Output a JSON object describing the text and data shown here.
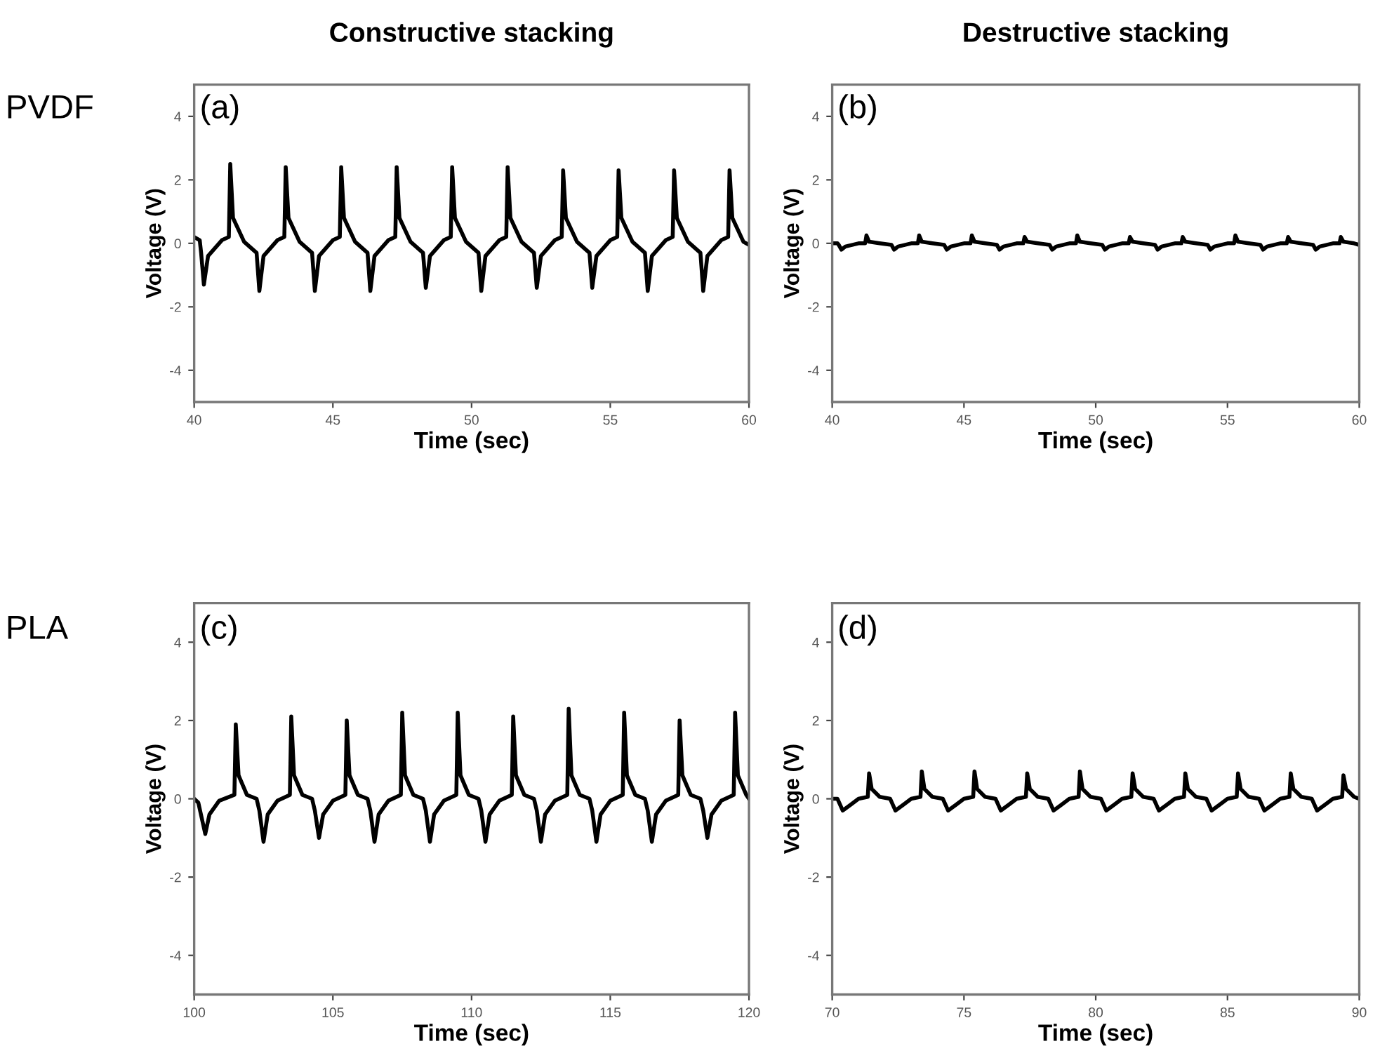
{
  "chart_data": [
    {
      "type": "line",
      "title": "Constructive stacking",
      "xlabel": "Time (sec)",
      "ylabel": "Voltage (V)",
      "annotations": [
        "(a)",
        "PVDF"
      ],
      "xlim": [
        40,
        60
      ],
      "xticks": [
        40,
        45,
        50,
        55,
        60
      ],
      "ylim": [
        -5,
        5
      ],
      "yticks": [
        -4,
        -2,
        0,
        2,
        4
      ],
      "grid": false,
      "legend": false,
      "x": [
        40.0,
        40.2,
        40.25,
        40.35,
        40.5,
        41.0,
        41.25,
        41.3,
        41.4,
        41.8,
        42.25,
        42.35,
        42.5,
        43.0,
        43.25,
        43.3,
        43.4,
        43.8,
        44.25,
        44.35,
        44.5,
        45.0,
        45.25,
        45.3,
        45.4,
        45.8,
        46.25,
        46.35,
        46.5,
        47.0,
        47.25,
        47.3,
        47.4,
        47.8,
        48.25,
        48.35,
        48.5,
        49.0,
        49.25,
        49.3,
        49.4,
        49.8,
        50.25,
        50.35,
        50.5,
        51.0,
        51.25,
        51.3,
        51.4,
        51.8,
        52.25,
        52.35,
        52.5,
        53.0,
        53.25,
        53.3,
        53.4,
        53.8,
        54.25,
        54.35,
        54.5,
        55.0,
        55.25,
        55.3,
        55.4,
        55.8,
        56.25,
        56.35,
        56.5,
        57.0,
        57.25,
        57.3,
        57.4,
        57.8,
        58.25,
        58.35,
        58.5,
        59.0,
        59.25,
        59.3,
        59.4,
        59.8,
        60.0
      ],
      "series": [
        {
          "color": "#000000",
          "values": [
            0.2,
            0.1,
            -0.3,
            -1.3,
            -0.4,
            0.1,
            0.2,
            2.5,
            0.8,
            0.05,
            -0.3,
            -1.5,
            -0.4,
            0.1,
            0.2,
            2.4,
            0.8,
            0.05,
            -0.3,
            -1.5,
            -0.4,
            0.1,
            0.2,
            2.4,
            0.8,
            0.05,
            -0.3,
            -1.5,
            -0.4,
            0.1,
            0.2,
            2.4,
            0.8,
            0.05,
            -0.3,
            -1.4,
            -0.4,
            0.1,
            0.2,
            2.4,
            0.8,
            0.05,
            -0.3,
            -1.5,
            -0.4,
            0.1,
            0.2,
            2.4,
            0.8,
            0.05,
            -0.3,
            -1.4,
            -0.4,
            0.1,
            0.2,
            2.3,
            0.8,
            0.05,
            -0.3,
            -1.4,
            -0.4,
            0.1,
            0.2,
            2.3,
            0.8,
            0.05,
            -0.3,
            -1.5,
            -0.4,
            0.1,
            0.2,
            2.3,
            0.8,
            0.05,
            -0.3,
            -1.5,
            -0.4,
            0.1,
            0.2,
            2.3,
            0.8,
            0.05,
            -0.05
          ]
        }
      ]
    },
    {
      "type": "line",
      "title": "Destructive stacking",
      "xlabel": "Time (sec)",
      "ylabel": "Voltage (V)",
      "annotations": [
        "(b)"
      ],
      "xlim": [
        40,
        60
      ],
      "xticks": [
        40,
        45,
        50,
        55,
        60
      ],
      "ylim": [
        -5,
        5
      ],
      "yticks": [
        -4,
        -2,
        0,
        2,
        4
      ],
      "grid": false,
      "legend": false,
      "x": [
        40.0,
        40.2,
        40.25,
        40.35,
        40.5,
        41.0,
        41.25,
        41.3,
        41.4,
        41.8,
        42.25,
        42.35,
        42.5,
        43.0,
        43.25,
        43.3,
        43.4,
        43.8,
        44.25,
        44.35,
        44.5,
        45.0,
        45.25,
        45.3,
        45.4,
        45.8,
        46.25,
        46.35,
        46.5,
        47.0,
        47.25,
        47.3,
        47.4,
        47.8,
        48.25,
        48.35,
        48.5,
        49.0,
        49.25,
        49.3,
        49.4,
        49.8,
        50.25,
        50.35,
        50.5,
        51.0,
        51.25,
        51.3,
        51.4,
        51.8,
        52.25,
        52.35,
        52.5,
        53.0,
        53.25,
        53.3,
        53.4,
        53.8,
        54.25,
        54.35,
        54.5,
        55.0,
        55.25,
        55.3,
        55.4,
        55.8,
        56.25,
        56.35,
        56.5,
        57.0,
        57.25,
        57.3,
        57.4,
        57.8,
        58.25,
        58.35,
        58.5,
        59.0,
        59.25,
        59.3,
        59.4,
        59.8,
        60.0
      ],
      "series": [
        {
          "color": "#000000",
          "values": [
            0,
            0,
            -0.05,
            -0.2,
            -0.1,
            0,
            0,
            0.25,
            0.05,
            0,
            -0.05,
            -0.2,
            -0.1,
            0,
            0,
            0.25,
            0.05,
            0,
            -0.05,
            -0.2,
            -0.1,
            0,
            0,
            0.25,
            0.05,
            0,
            -0.05,
            -0.2,
            -0.1,
            0,
            0,
            0.2,
            0.05,
            0,
            -0.05,
            -0.2,
            -0.1,
            0,
            0,
            0.25,
            0.05,
            0,
            -0.05,
            -0.2,
            -0.1,
            0,
            0,
            0.2,
            0.05,
            0,
            -0.05,
            -0.2,
            -0.1,
            0,
            0,
            0.2,
            0.05,
            0,
            -0.05,
            -0.2,
            -0.1,
            0,
            0,
            0.25,
            0.05,
            0,
            -0.05,
            -0.2,
            -0.1,
            0,
            0,
            0.2,
            0.05,
            0,
            -0.05,
            -0.2,
            -0.1,
            0,
            0,
            0.2,
            0.05,
            0,
            -0.05
          ]
        }
      ]
    },
    {
      "type": "line",
      "xlabel": "Time (sec)",
      "ylabel": "Voltage (V)",
      "annotations": [
        "(c)",
        "PLA"
      ],
      "xlim": [
        100,
        120
      ],
      "xticks": [
        100,
        105,
        110,
        115,
        120
      ],
      "ylim": [
        -5,
        5
      ],
      "yticks": [
        -4,
        -2,
        0,
        2,
        4
      ],
      "grid": false,
      "legend": false,
      "x": [
        100.0,
        100.15,
        100.4,
        100.55,
        100.9,
        101.45,
        101.5,
        101.6,
        101.9,
        102.25,
        102.35,
        102.5,
        102.65,
        103.0,
        103.45,
        103.5,
        103.6,
        103.9,
        104.25,
        104.35,
        104.5,
        104.65,
        105.0,
        105.45,
        105.5,
        105.6,
        105.9,
        106.25,
        106.35,
        106.5,
        106.65,
        107.0,
        107.45,
        107.5,
        107.6,
        107.9,
        108.25,
        108.35,
        108.5,
        108.65,
        109.0,
        109.45,
        109.5,
        109.6,
        109.9,
        110.25,
        110.35,
        110.5,
        110.65,
        111.0,
        111.45,
        111.5,
        111.6,
        111.9,
        112.25,
        112.35,
        112.5,
        112.65,
        113.0,
        113.45,
        113.5,
        113.6,
        113.9,
        114.25,
        114.35,
        114.5,
        114.65,
        115.0,
        115.45,
        115.5,
        115.6,
        115.9,
        116.25,
        116.35,
        116.5,
        116.65,
        117.0,
        117.45,
        117.5,
        117.6,
        117.9,
        118.25,
        118.35,
        118.5,
        118.65,
        119.0,
        119.45,
        119.5,
        119.6,
        119.9,
        120.0
      ],
      "series": [
        {
          "color": "#000000",
          "values": [
            0,
            -0.1,
            -0.9,
            -0.4,
            -0.05,
            0.1,
            1.9,
            0.6,
            0.1,
            0.0,
            -0.3,
            -1.1,
            -0.4,
            -0.05,
            0.1,
            2.1,
            0.6,
            0.1,
            0.0,
            -0.3,
            -1.0,
            -0.4,
            -0.05,
            0.1,
            2.0,
            0.6,
            0.1,
            0.0,
            -0.3,
            -1.1,
            -0.4,
            -0.05,
            0.1,
            2.2,
            0.6,
            0.1,
            0.0,
            -0.3,
            -1.1,
            -0.4,
            -0.05,
            0.1,
            2.2,
            0.6,
            0.1,
            0.0,
            -0.3,
            -1.1,
            -0.4,
            -0.05,
            0.1,
            2.1,
            0.6,
            0.1,
            0.0,
            -0.3,
            -1.1,
            -0.4,
            -0.05,
            0.1,
            2.3,
            0.6,
            0.1,
            0.0,
            -0.3,
            -1.1,
            -0.4,
            -0.05,
            0.1,
            2.2,
            0.6,
            0.1,
            0.0,
            -0.3,
            -1.1,
            -0.4,
            -0.05,
            0.1,
            2.0,
            0.6,
            0.1,
            0.0,
            -0.3,
            -1.0,
            -0.4,
            -0.05,
            0.1,
            2.2,
            0.6,
            0.1,
            0.0
          ]
        }
      ]
    },
    {
      "type": "line",
      "xlabel": "Time (sec)",
      "ylabel": "Voltage (V)",
      "annotations": [
        "(d)"
      ],
      "xlim": [
        70,
        90
      ],
      "xticks": [
        70,
        75,
        80,
        85,
        90
      ],
      "ylim": [
        -5,
        5
      ],
      "yticks": [
        -4,
        -2,
        0,
        2,
        4
      ],
      "grid": false,
      "legend": false,
      "x": [
        70.0,
        70.2,
        70.4,
        70.7,
        71.0,
        71.35,
        71.4,
        71.5,
        71.8,
        72.2,
        72.4,
        72.7,
        73.0,
        73.35,
        73.4,
        73.5,
        73.8,
        74.2,
        74.4,
        74.7,
        75.0,
        75.35,
        75.4,
        75.5,
        75.8,
        76.2,
        76.4,
        76.7,
        77.0,
        77.35,
        77.4,
        77.5,
        77.8,
        78.2,
        78.4,
        78.7,
        79.0,
        79.35,
        79.4,
        79.5,
        79.8,
        80.2,
        80.4,
        80.7,
        81.0,
        81.35,
        81.4,
        81.5,
        81.8,
        82.2,
        82.4,
        82.7,
        83.0,
        83.35,
        83.4,
        83.5,
        83.8,
        84.2,
        84.4,
        84.7,
        85.0,
        85.35,
        85.4,
        85.5,
        85.8,
        86.2,
        86.4,
        86.7,
        87.0,
        87.35,
        87.4,
        87.5,
        87.8,
        88.2,
        88.4,
        88.7,
        89.0,
        89.35,
        89.4,
        89.5,
        89.8,
        90.0
      ],
      "series": [
        {
          "color": "#000000",
          "values": [
            0,
            0,
            -0.3,
            -0.15,
            0,
            0.05,
            0.65,
            0.25,
            0.05,
            0,
            -0.3,
            -0.15,
            0,
            0.05,
            0.7,
            0.25,
            0.05,
            0,
            -0.3,
            -0.15,
            0,
            0.05,
            0.7,
            0.25,
            0.05,
            0,
            -0.3,
            -0.15,
            0,
            0.05,
            0.65,
            0.25,
            0.05,
            0,
            -0.3,
            -0.15,
            0,
            0.05,
            0.7,
            0.25,
            0.05,
            0,
            -0.3,
            -0.15,
            0,
            0.05,
            0.65,
            0.25,
            0.05,
            0,
            -0.3,
            -0.15,
            0,
            0.05,
            0.65,
            0.25,
            0.05,
            0,
            -0.3,
            -0.15,
            0,
            0.05,
            0.65,
            0.25,
            0.05,
            0,
            -0.3,
            -0.15,
            0,
            0.05,
            0.65,
            0.25,
            0.05,
            0,
            -0.3,
            -0.15,
            0,
            0.05,
            0.6,
            0.25,
            0.05,
            0
          ]
        }
      ]
    }
  ]
}
